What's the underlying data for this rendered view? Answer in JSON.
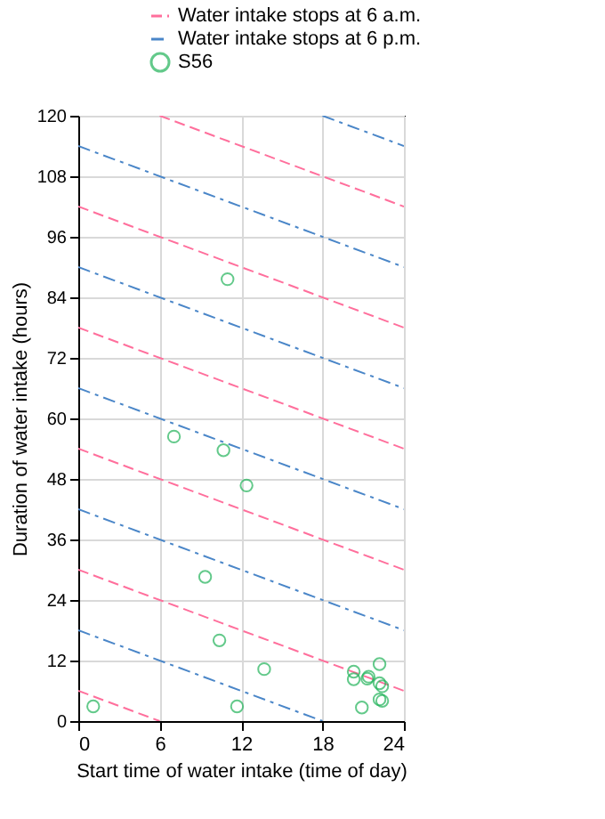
{
  "chart_data": {
    "type": "scatter",
    "xlabel": "Start time of water intake (time of day)",
    "ylabel": "Duration of water intake (hours)",
    "xlim": [
      0,
      24
    ],
    "xticks": [
      0,
      6,
      12,
      18,
      24
    ],
    "ylim": [
      0,
      120
    ],
    "yticks": [
      0,
      12,
      24,
      36,
      48,
      60,
      72,
      84,
      96,
      108,
      120
    ],
    "grid": true,
    "legend": "top",
    "series": [
      {
        "type": "line",
        "name": "Water intake stops at 6 a.m.",
        "color": "#ff6f9c",
        "line_style": "dashed",
        "x": [
          0,
          6
        ],
        "values": [
          6,
          0
        ]
      },
      {
        "type": "line",
        "color": "#ff6f9c",
        "line_style": "dashed",
        "x": [
          0,
          24
        ],
        "values": [
          30,
          6
        ]
      },
      {
        "type": "line",
        "color": "#ff6f9c",
        "line_style": "dashed",
        "x": [
          0,
          24
        ],
        "values": [
          54,
          30
        ]
      },
      {
        "type": "line",
        "color": "#ff6f9c",
        "line_style": "dashed",
        "x": [
          0,
          24
        ],
        "values": [
          78,
          54
        ]
      },
      {
        "type": "line",
        "color": "#ff6f9c",
        "line_style": "dashed",
        "x": [
          0,
          24
        ],
        "values": [
          102,
          78
        ]
      },
      {
        "type": "line",
        "color": "#ff6f9c",
        "line_style": "dashed",
        "x": [
          6,
          24
        ],
        "values": [
          120,
          102
        ]
      },
      {
        "type": "line",
        "name": "Water intake stops at 6 p.m.",
        "color": "#4a86c8",
        "line_style": "dashdot",
        "x": [
          0,
          18
        ],
        "values": [
          18,
          0
        ]
      },
      {
        "type": "line",
        "color": "#4a86c8",
        "line_style": "dashdot",
        "x": [
          0,
          24
        ],
        "values": [
          42,
          18
        ]
      },
      {
        "type": "line",
        "color": "#4a86c8",
        "line_style": "dashdot",
        "x": [
          0,
          24
        ],
        "values": [
          66,
          42
        ]
      },
      {
        "type": "line",
        "color": "#4a86c8",
        "line_style": "dashdot",
        "x": [
          0,
          24
        ],
        "values": [
          90,
          66
        ]
      },
      {
        "type": "line",
        "color": "#4a86c8",
        "line_style": "dashdot",
        "x": [
          0,
          24
        ],
        "values": [
          114,
          90
        ]
      },
      {
        "type": "line",
        "color": "#4a86c8",
        "line_style": "dashdot",
        "x": [
          18,
          24
        ],
        "values": [
          120,
          114
        ]
      },
      {
        "type": "scatter",
        "name": "S56",
        "color": "#22b35a",
        "marker": "circle",
        "x": [
          1.1,
          7.05,
          10.7,
          11.0,
          12.4,
          9.35,
          10.4,
          11.7,
          13.7,
          20.3,
          20.3,
          21.3,
          21.4,
          22.2,
          22.2,
          22.4,
          22.2,
          22.4,
          20.9
        ],
        "values": [
          2.9,
          56.4,
          53.7,
          87.6,
          46.7,
          28.6,
          16.0,
          2.9,
          10.3,
          9.8,
          8.3,
          8.4,
          8.8,
          11.3,
          7.5,
          6.9,
          4.3,
          4.0,
          2.7
        ]
      }
    ]
  }
}
